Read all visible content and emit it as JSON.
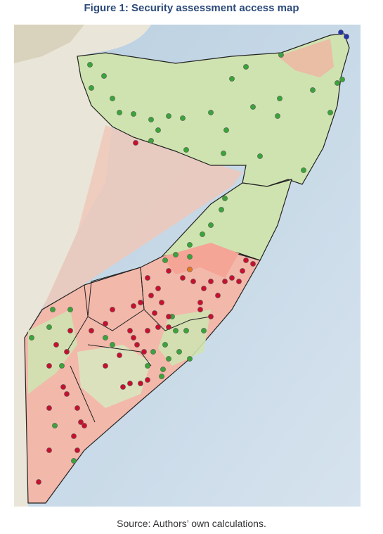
{
  "figure": {
    "title": "Figure 1: Security assessment access map",
    "source": "Source:  Authors’ own calculations."
  }
}
